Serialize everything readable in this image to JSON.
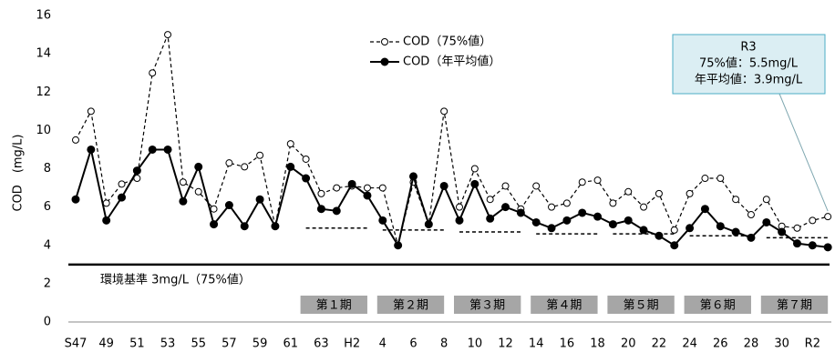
{
  "chart_data": {
    "type": "line",
    "y_label": "COD　(mg/L)",
    "categories": [
      "S47",
      null,
      "49",
      null,
      "51",
      null,
      "53",
      null,
      "55",
      null,
      "57",
      null,
      "59",
      null,
      "61",
      null,
      "63",
      null,
      "H2",
      null,
      "4",
      null,
      "6",
      null,
      "8",
      null,
      "10",
      null,
      "12",
      null,
      "14",
      null,
      "16",
      null,
      "18",
      null,
      "20",
      null,
      "22",
      null,
      "24",
      null,
      "26",
      null,
      "28",
      null,
      "30",
      null,
      "R2",
      null
    ],
    "series": [
      {
        "name": "COD（75%値）",
        "color": "#000000",
        "style": "dashed-open",
        "values": [
          9.5,
          11,
          6.2,
          7.2,
          7.5,
          13,
          15,
          7.3,
          6.8,
          5.9,
          8.3,
          8.1,
          8.7,
          5.0,
          9.3,
          8.5,
          6.7,
          7.0,
          7.1,
          7.0,
          7.0,
          4.0,
          7.3,
          5.1,
          11,
          6.0,
          8.0,
          6.4,
          7.1,
          5.9,
          7.1,
          6.0,
          6.2,
          7.3,
          7.4,
          6.2,
          6.8,
          6.0,
          6.7,
          4.8,
          6.7,
          7.5,
          7.5,
          6.4,
          5.6,
          6.4,
          5.0,
          4.9,
          5.3,
          5.5
        ]
      },
      {
        "name": "COD（年平均値）",
        "color": "#000000",
        "style": "solid-filled",
        "values": [
          6.4,
          9.0,
          5.3,
          6.5,
          7.9,
          9.0,
          9.0,
          6.3,
          8.1,
          5.1,
          6.1,
          5.0,
          6.4,
          5.0,
          8.1,
          7.5,
          5.9,
          5.8,
          7.2,
          6.6,
          5.3,
          4.0,
          7.6,
          5.1,
          7.1,
          5.3,
          7.2,
          5.4,
          6.0,
          5.7,
          5.2,
          4.9,
          5.3,
          5.7,
          5.5,
          5.1,
          5.3,
          4.8,
          4.5,
          4.0,
          4.9,
          5.9,
          5.0,
          4.7,
          4.4,
          5.2,
          4.7,
          4.1,
          4.0,
          3.9
        ]
      }
    ],
    "standard": {
      "value": 3,
      "label": "環境基準 3mg/L（75%値）"
    },
    "periods": [
      {
        "label": "第１期",
        "value": 4.9
      },
      {
        "label": "第２期",
        "value": 4.8
      },
      {
        "label": "第３期",
        "value": 4.7
      },
      {
        "label": "第４期",
        "value": 4.6
      },
      {
        "label": "第５期",
        "value": 4.6
      },
      {
        "label": "第６期",
        "value": 4.5
      },
      {
        "label": "第７期",
        "value": 4.4
      }
    ],
    "annotation": {
      "lines": [
        "R3",
        "75%値：5.5mg/L",
        "年平均値：3.9mg/L"
      ]
    },
    "ylim": [
      0,
      16
    ],
    "yticks": [
      0,
      2,
      4,
      6,
      8,
      10,
      12,
      14,
      16
    ],
    "grid": false
  }
}
